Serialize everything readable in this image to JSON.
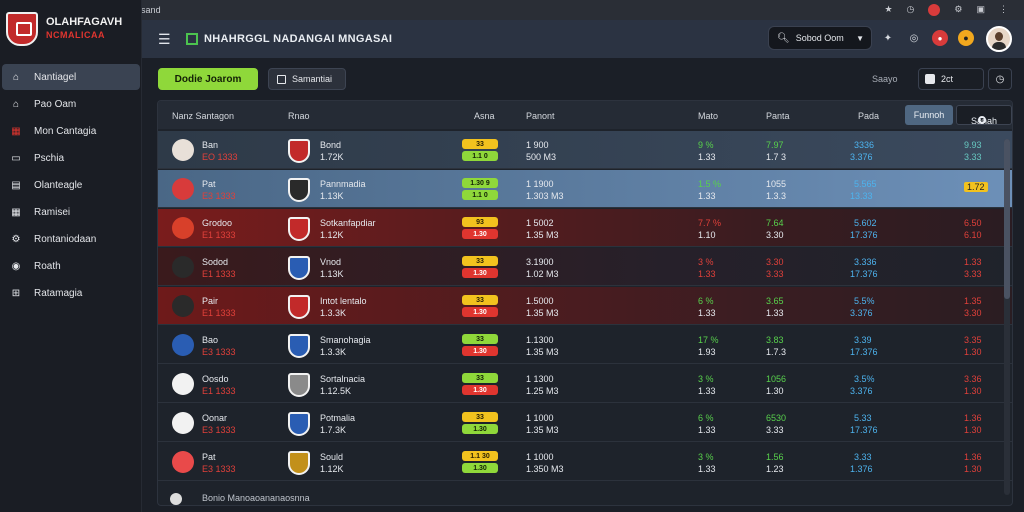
{
  "browser": {
    "url": "Padlio Maanheadsand",
    "back": "←",
    "forward": "→"
  },
  "sidebar": {
    "brand_line1": "OLAHFAGAVH",
    "brand_line2": "NCMALICAA",
    "items": [
      {
        "label": "Nantiagel",
        "icon": "home-icon",
        "active": true
      },
      {
        "label": "Pao Oam",
        "icon": "house-icon"
      },
      {
        "label": "Mon Cantagia",
        "icon": "calendar-icon"
      },
      {
        "label": "Pschia",
        "icon": "tv-icon"
      },
      {
        "label": "Olanteagle",
        "icon": "chart-icon"
      },
      {
        "label": "Ramisei",
        "icon": "grid-icon"
      },
      {
        "label": "Rontaniodaan",
        "icon": "gear-icon"
      },
      {
        "label": "Roath",
        "icon": "globe-icon"
      },
      {
        "label": "Ratamagia",
        "icon": "plus-box-icon"
      }
    ]
  },
  "topbar": {
    "title": "NHAHRGGL NADANGAI MNGASAI",
    "search_placeholder": "Sobod Oom"
  },
  "toolbar": {
    "primary_label": "Dodie Joarom",
    "secondary_label": "Samantiai",
    "sort_label": "Saayo",
    "sort_value": "2ct"
  },
  "table": {
    "headers": {
      "team": "Nanz Santagon",
      "name": "Rnao",
      "score": "Asna",
      "result": "Panont",
      "mato": "Mato",
      "panta": "Panta",
      "pada": "Pada",
      "btn1": "Funnoh",
      "btn2": "Sanah"
    },
    "rows": [
      {
        "team": "Ban",
        "sub": "EO 1333",
        "name": "Bond",
        "name_sub": "1.72K",
        "pill_top": "33",
        "pill_bot": "1.1 0",
        "res1": "1 900",
        "res2": "500 M3",
        "m1": "9 %",
        "m2": "1.33",
        "p1": "7.97",
        "p2": "1.7 3",
        "d1": "3336",
        "d2": "3.376",
        "e1": "9.93",
        "e2": "3.33"
      },
      {
        "team": "Pat",
        "sub": "E3 1333",
        "name": "Pannmadia",
        "name_sub": "1.13K",
        "pill_top": "1.30 9",
        "pill_bot": "1.1 0",
        "res1": "1 1900",
        "res2": "1.303 M3",
        "m1": "1.5 %",
        "m2": "1.33",
        "p1": "1055",
        "p2": "1.3.3",
        "d1": "5.565",
        "d2": "13.33",
        "e1": "1.72",
        "e2": ""
      },
      {
        "team": "Grodoo",
        "sub": "E1 1333",
        "name": "Sotkanfapdiar",
        "name_sub": "1.12K",
        "pill_top": "93",
        "pill_bot": "1.30",
        "res1": "1 5002",
        "res2": "1.35 M3",
        "m1": "7.7 %",
        "m2": "1.10",
        "p1": "7.64",
        "p2": "3.30",
        "d1": "5.602",
        "d2": "17.376",
        "e1": "6.50",
        "e2": "6.10"
      },
      {
        "team": "Sodod",
        "sub": "E1 1333",
        "name": "Vnod",
        "name_sub": "1.13K",
        "pill_top": "33",
        "pill_bot": "1.30",
        "res1": "3.1900",
        "res2": "1.02 M3",
        "m1": "3 %",
        "m2": "1.33",
        "p1": "3.30",
        "p2": "3.33",
        "d1": "3.336",
        "d2": "17.376",
        "e1": "1.33",
        "e2": "3.33"
      },
      {
        "team": "Pair",
        "sub": "E1 1333",
        "name": "Intot lentalo",
        "name_sub": "1.3.3K",
        "pill_top": "33",
        "pill_bot": "1.30",
        "res1": "1.5000",
        "res2": "1.35 M3",
        "m1": "6 %",
        "m2": "1.33",
        "p1": "3.65",
        "p2": "1.33",
        "d1": "5.5%",
        "d2": "3.376",
        "e1": "1.35",
        "e2": "3.30"
      },
      {
        "team": "Bao",
        "sub": "E3 1333",
        "name": "Smanohagia",
        "name_sub": "1.3.3K",
        "pill_top": "33",
        "pill_bot": "1.30",
        "res1": "1.1300",
        "res2": "1.35 M3",
        "m1": "17 %",
        "m2": "1.93",
        "p1": "3.83",
        "p2": "1.7.3",
        "d1": "3.39",
        "d2": "17.376",
        "e1": "3.35",
        "e2": "1.30"
      },
      {
        "team": "Oosdo",
        "sub": "E1 1333",
        "name": "Sortalnacia",
        "name_sub": "1.12.5K",
        "pill_top": "33",
        "pill_bot": "1.30",
        "res1": "1 1300",
        "res2": "1.25 M3",
        "m1": "3 %",
        "m2": "1.33",
        "p1": "1056",
        "p2": "1.30",
        "d1": "3.5%",
        "d2": "3.376",
        "e1": "3.36",
        "e2": "1.30"
      },
      {
        "team": "Oonar",
        "sub": "E3 1333",
        "name": "Potmalia",
        "name_sub": "1.7.3K",
        "pill_top": "33",
        "pill_bot": "1.30",
        "res1": "1 1000",
        "res2": "1.35 M3",
        "m1": "6 %",
        "m2": "1.33",
        "p1": "6530",
        "p2": "3.33",
        "d1": "5.33",
        "d2": "17.376",
        "e1": "1.36",
        "e2": "1.30"
      },
      {
        "team": "Pat",
        "sub": "E3 1333",
        "name": "Sould",
        "name_sub": "1.12K",
        "pill_top": "1.1 30",
        "pill_bot": "1.30",
        "res1": "1 1000",
        "res2": "1.350 M3",
        "m1": "3 %",
        "m2": "1.33",
        "p1": "1.56",
        "p2": "1.23",
        "d1": "3.33",
        "d2": "1.376",
        "e1": "1.36",
        "e2": "1.30"
      }
    ],
    "footer": "Bonio Manoaoananaosnna"
  }
}
